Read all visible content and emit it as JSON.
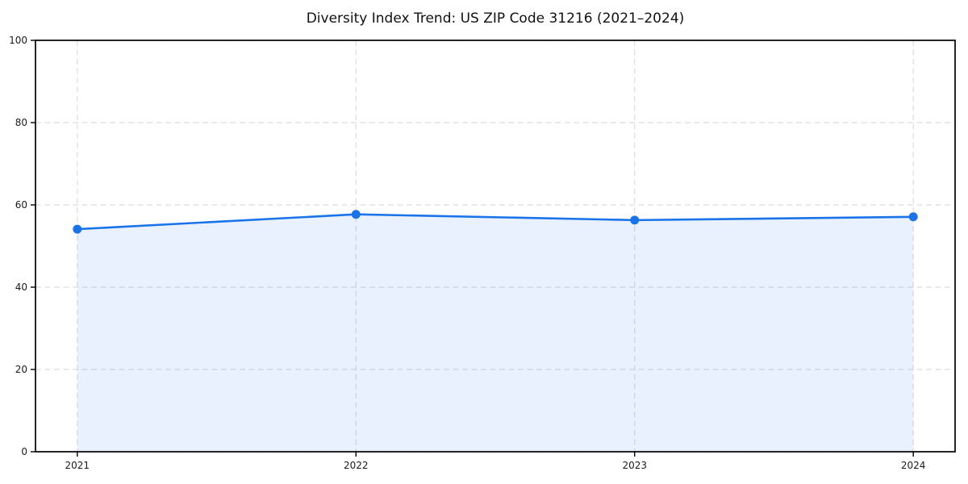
{
  "chart_data": {
    "type": "area",
    "title": "Diversity Index Trend: US ZIP Code 31216 (2021–2024)",
    "x": [
      2021,
      2022,
      2023,
      2024
    ],
    "series": [
      {
        "name": "Diversity Index",
        "values": [
          54.1,
          57.7,
          56.3,
          57.1
        ]
      }
    ],
    "xlabel": "",
    "ylabel": "",
    "ylim": [
      0,
      100
    ],
    "yticks": [
      0,
      20,
      40,
      60,
      80,
      100
    ],
    "xtick_labels": [
      "2021",
      "2022",
      "2023",
      "2024"
    ],
    "x_margin": 0.15,
    "grid": true,
    "grid_style": "dashed",
    "legend_position": "none",
    "colors": {
      "line": "#1a73e8",
      "fill": "#1a73e8",
      "fill_opacity": 0.1,
      "grid": "#dcdcdc",
      "spine": "#000000",
      "tick_text": "#1a1a1a",
      "background": "#ffffff"
    },
    "marker": {
      "shape": "circle",
      "radius": 5.5
    },
    "line_width": 2.6
  }
}
